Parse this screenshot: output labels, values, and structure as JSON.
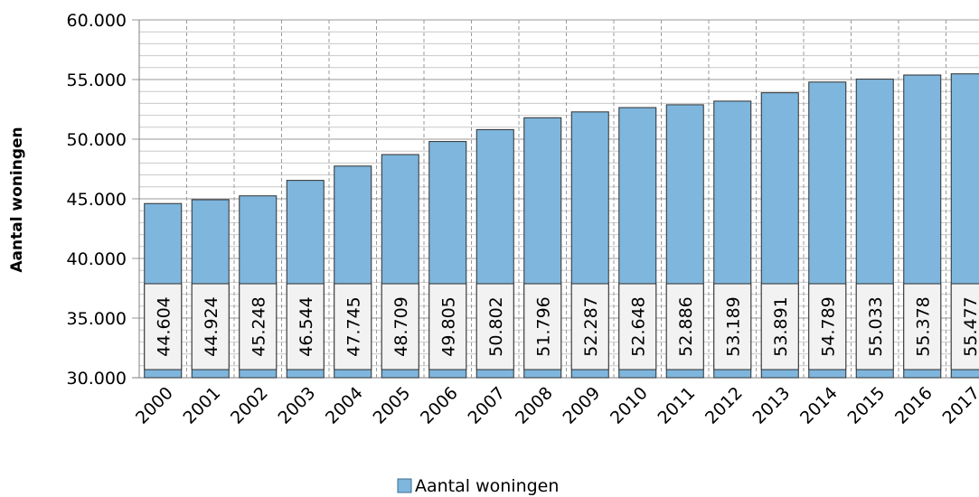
{
  "chart_data": {
    "type": "bar",
    "title": "",
    "xlabel": "",
    "ylabel": "Aantal woningen",
    "ylim": [
      30000,
      60000
    ],
    "ytick_step": 5000,
    "minor_grid_step": 1000,
    "ytick_labels": [
      "30.000",
      "35.000",
      "40.000",
      "45.000",
      "50.000",
      "55.000",
      "60.000"
    ],
    "categories": [
      "2000",
      "2001",
      "2002",
      "2003",
      "2004",
      "2005",
      "2006",
      "2007",
      "2008",
      "2009",
      "2010",
      "2011",
      "2012",
      "2013",
      "2014",
      "2015",
      "2016",
      "2017"
    ],
    "series": [
      {
        "name": "Aantal woningen",
        "color": "#7eb6dd",
        "values": [
          44604,
          44924,
          45248,
          46544,
          47745,
          48709,
          49805,
          50802,
          51796,
          52287,
          52648,
          52886,
          53189,
          53891,
          54789,
          55033,
          55378,
          55477
        ],
        "labels": [
          "44.604",
          "44.924",
          "45.248",
          "46.544",
          "47.745",
          "48.709",
          "49.805",
          "50.802",
          "51.796",
          "52.287",
          "52.648",
          "52.886",
          "53.189",
          "53.891",
          "54.789",
          "55.033",
          "55.378",
          "55.477"
        ]
      }
    ],
    "data_label_box_color": "#f2f2f2",
    "grid": true,
    "legend": "bottom-center"
  }
}
